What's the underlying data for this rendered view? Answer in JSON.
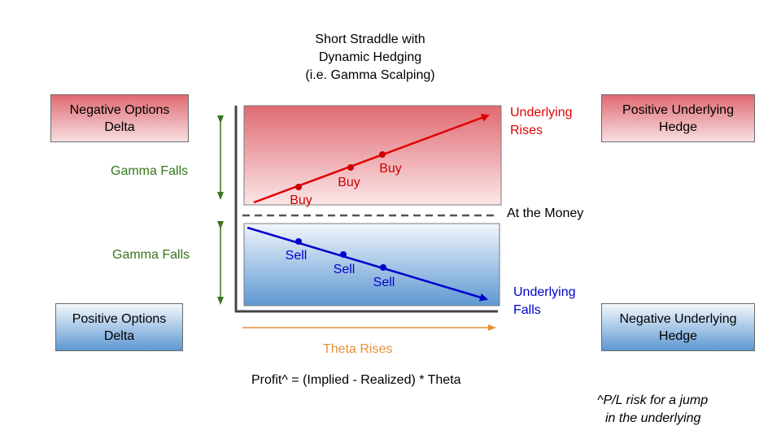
{
  "title": {
    "line1": "Short Straddle with",
    "line2": "Dynamic Hedging",
    "line3": "(i.e. Gamma Scalping)"
  },
  "boxes": {
    "neg_options_delta": {
      "line1": "Negative Options",
      "line2": "Delta"
    },
    "pos_options_delta": {
      "line1": "Positive Options",
      "line2": "Delta"
    },
    "pos_underlying_hedge": {
      "line1": "Positive Underlying",
      "line2": "Hedge"
    },
    "neg_underlying_hedge": {
      "line1": "Negative Underlying",
      "line2": "Hedge"
    }
  },
  "labels": {
    "gamma_falls_top": "Gamma Falls",
    "gamma_falls_bottom": "Gamma Falls",
    "underlying_rises_1": "Underlying",
    "underlying_rises_2": "Rises",
    "at_the_money": "At the Money",
    "underlying_falls_1": "Underlying",
    "underlying_falls_2": "Falls",
    "theta_rises": "Theta Rises",
    "profit_formula": "Profit^ = (Implied - Realized) * Theta",
    "risk_note_1": "^P/L risk for a jump",
    "risk_note_2": "in the underlying"
  },
  "trade_labels": {
    "buy1": "Buy",
    "buy2": "Buy",
    "buy3": "Buy",
    "sell1": "Sell",
    "sell2": "Sell",
    "sell3": "Sell"
  },
  "colors": {
    "red": "#e00000",
    "blue": "#0000cc",
    "green": "#38761d",
    "orange": "#e69138",
    "axis": "#444444",
    "dash": "#555555"
  }
}
